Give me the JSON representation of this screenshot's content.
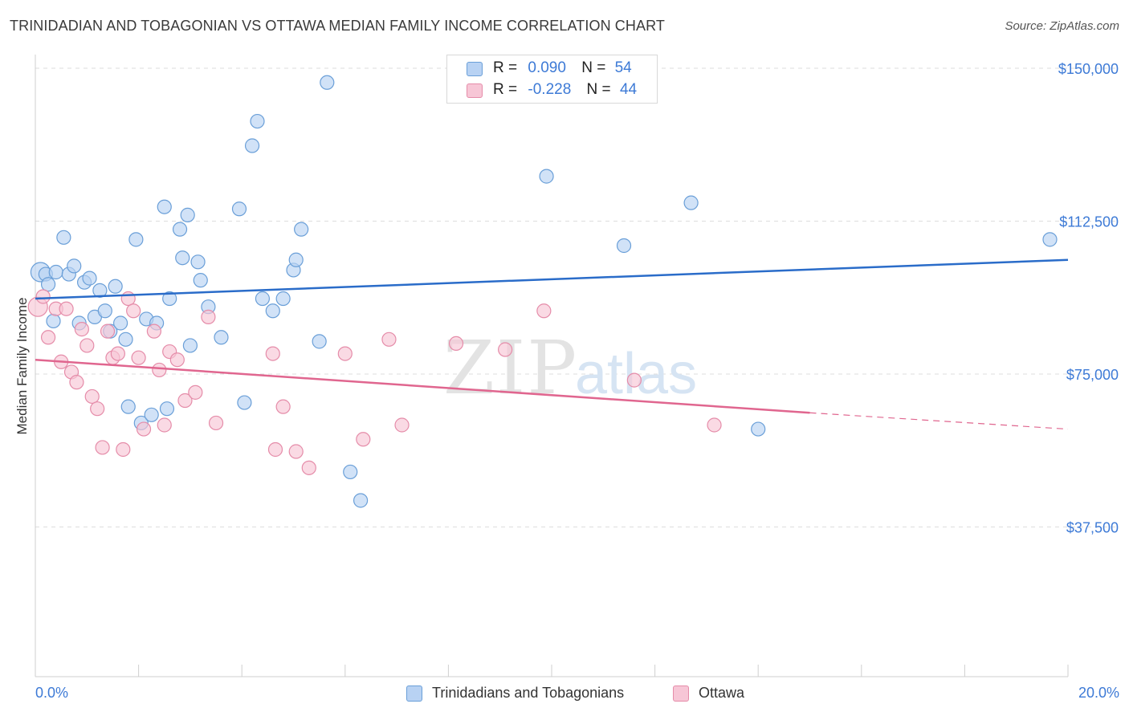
{
  "title": "TRINIDADIAN AND TOBAGONIAN VS OTTAWA MEDIAN FAMILY INCOME CORRELATION CHART",
  "source": "Source: ZipAtlas.com",
  "watermark": "ZIPatlas",
  "colors": {
    "blue_fill": "#b8d2f3",
    "blue_stroke": "#6a9fd8",
    "blue_line": "#2a6cc9",
    "pink_fill": "#f7c6d6",
    "pink_stroke": "#e58ca9",
    "pink_line": "#e0668f",
    "axis_text": "#3d7ad6",
    "grid": "#dddddd"
  },
  "legend_top": [
    {
      "r_label": "R =",
      "r_value": "0.090",
      "n_label": "N =",
      "n_value": "54",
      "color": "blue"
    },
    {
      "r_label": "R =",
      "r_value": "-0.228",
      "n_label": "N =",
      "n_value": "44",
      "color": "pink"
    }
  ],
  "legend_bottom": [
    {
      "label": "Trinidadians and Tobagonians",
      "color": "blue"
    },
    {
      "label": "Ottawa",
      "color": "pink"
    }
  ],
  "chart_data": {
    "type": "scatter",
    "title": "TRINIDADIAN AND TOBAGONIAN VS OTTAWA MEDIAN FAMILY INCOME CORRELATION CHART",
    "xlabel": "",
    "ylabel": "Median Family Income",
    "xlim": [
      0,
      20
    ],
    "ylim": [
      0,
      155000
    ],
    "x_tick_labels": [
      "0.0%",
      "20.0%"
    ],
    "y_ticks": [
      37500,
      75000,
      112500,
      150000
    ],
    "y_tick_labels": [
      "$37,500",
      "$75,000",
      "$112,500",
      "$150,000"
    ],
    "grid": "horizontal dashed",
    "legend_position": "top-center",
    "series": [
      {
        "name": "Trinidadians and Tobagonians",
        "color": "blue",
        "trend": {
          "x0": 0,
          "y0": 93500,
          "x1": 20,
          "y1": 103000
        },
        "points": [
          [
            0.1,
            100000
          ],
          [
            0.2,
            99500
          ],
          [
            0.25,
            97000
          ],
          [
            0.35,
            88000
          ],
          [
            0.4,
            100000
          ],
          [
            0.55,
            108500
          ],
          [
            0.65,
            99500
          ],
          [
            0.75,
            101500
          ],
          [
            0.85,
            87500
          ],
          [
            0.95,
            97500
          ],
          [
            1.05,
            98500
          ],
          [
            1.15,
            89000
          ],
          [
            1.25,
            95500
          ],
          [
            1.35,
            90500
          ],
          [
            1.45,
            85500
          ],
          [
            1.55,
            96500
          ],
          [
            1.65,
            87500
          ],
          [
            1.75,
            83500
          ],
          [
            1.8,
            67000
          ],
          [
            1.95,
            108000
          ],
          [
            2.05,
            63000
          ],
          [
            2.15,
            88500
          ],
          [
            2.25,
            65000
          ],
          [
            2.35,
            87500
          ],
          [
            2.5,
            116000
          ],
          [
            2.55,
            66500
          ],
          [
            2.6,
            93500
          ],
          [
            2.8,
            110500
          ],
          [
            2.85,
            103500
          ],
          [
            2.95,
            114000
          ],
          [
            3.0,
            82000
          ],
          [
            3.15,
            102500
          ],
          [
            3.2,
            98000
          ],
          [
            3.35,
            91500
          ],
          [
            3.6,
            84000
          ],
          [
            3.95,
            115500
          ],
          [
            4.05,
            68000
          ],
          [
            4.2,
            131000
          ],
          [
            4.3,
            137000
          ],
          [
            4.4,
            93500
          ],
          [
            4.6,
            90500
          ],
          [
            4.8,
            93500
          ],
          [
            5.0,
            100500
          ],
          [
            5.05,
            103000
          ],
          [
            5.15,
            110500
          ],
          [
            5.5,
            83000
          ],
          [
            5.65,
            146500
          ],
          [
            6.1,
            51000
          ],
          [
            6.3,
            44000
          ],
          [
            9.9,
            123500
          ],
          [
            11.4,
            106500
          ],
          [
            12.7,
            117000
          ],
          [
            14.0,
            61500
          ],
          [
            19.65,
            108000
          ]
        ]
      },
      {
        "name": "Ottawa",
        "color": "pink",
        "trend": {
          "x0": 0,
          "y0": 78500,
          "x1": 15,
          "y1": 65500,
          "dashed_to_x": 20,
          "dashed_to_y": 61500
        },
        "points": [
          [
            0.05,
            91500
          ],
          [
            0.15,
            94000
          ],
          [
            0.25,
            84000
          ],
          [
            0.4,
            91000
          ],
          [
            0.5,
            78000
          ],
          [
            0.6,
            91000
          ],
          [
            0.7,
            75500
          ],
          [
            0.8,
            73000
          ],
          [
            0.9,
            86000
          ],
          [
            1.0,
            82000
          ],
          [
            1.1,
            69500
          ],
          [
            1.2,
            66500
          ],
          [
            1.3,
            57000
          ],
          [
            1.4,
            85500
          ],
          [
            1.5,
            79000
          ],
          [
            1.6,
            80000
          ],
          [
            1.7,
            56500
          ],
          [
            1.8,
            93500
          ],
          [
            1.9,
            90500
          ],
          [
            2.0,
            79000
          ],
          [
            2.1,
            61500
          ],
          [
            2.3,
            85500
          ],
          [
            2.4,
            76000
          ],
          [
            2.5,
            62500
          ],
          [
            2.6,
            80500
          ],
          [
            2.75,
            78500
          ],
          [
            2.9,
            68500
          ],
          [
            3.1,
            70500
          ],
          [
            3.35,
            89000
          ],
          [
            3.5,
            63000
          ],
          [
            4.6,
            80000
          ],
          [
            4.65,
            56500
          ],
          [
            4.8,
            67000
          ],
          [
            5.05,
            56000
          ],
          [
            5.3,
            52000
          ],
          [
            6.0,
            80000
          ],
          [
            6.35,
            59000
          ],
          [
            6.85,
            83500
          ],
          [
            7.1,
            62500
          ],
          [
            8.15,
            82500
          ],
          [
            9.1,
            81000
          ],
          [
            9.85,
            90500
          ],
          [
            11.6,
            73500
          ],
          [
            13.15,
            62500
          ]
        ]
      }
    ]
  }
}
